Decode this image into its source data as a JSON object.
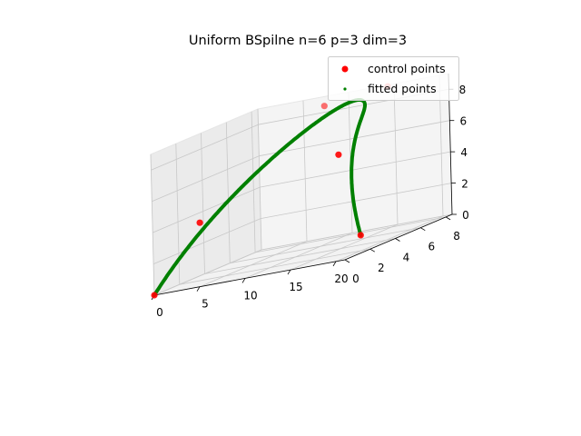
{
  "chart_data": {
    "type": "scatter",
    "title": "Uniform BSpilne n=6 p=3 dim=3",
    "xlabel": "",
    "ylabel": "",
    "zlabel": "",
    "xlim": [
      0,
      21
    ],
    "ylim": [
      0,
      8.5
    ],
    "zlim": [
      0,
      9
    ],
    "x_ticks": [
      "0",
      "5",
      "10",
      "15",
      "20"
    ],
    "y_ticks": [
      "0",
      "2",
      "4",
      "6",
      "8"
    ],
    "z_ticks": [
      "0",
      "2",
      "4",
      "6",
      "8"
    ],
    "grid": true,
    "legend_position": "top-right",
    "series": [
      {
        "name": "control points",
        "color": "#ff0000",
        "marker": "circle",
        "points": [
          {
            "x": 0,
            "y": 0,
            "z": 0
          },
          {
            "x": 1,
            "y": 3,
            "z": 3.5
          },
          {
            "x": 8,
            "y": 8,
            "z": 8.5
          },
          {
            "x": 15,
            "y": 8,
            "z": 9
          },
          {
            "x": 15,
            "y": 4,
            "z": 6
          },
          {
            "x": 20,
            "y": 2,
            "z": 1
          }
        ]
      },
      {
        "name": "fitted points",
        "color": "#008000",
        "marker": "dot",
        "curve": "uniform cubic B-spline through the control points"
      }
    ]
  }
}
